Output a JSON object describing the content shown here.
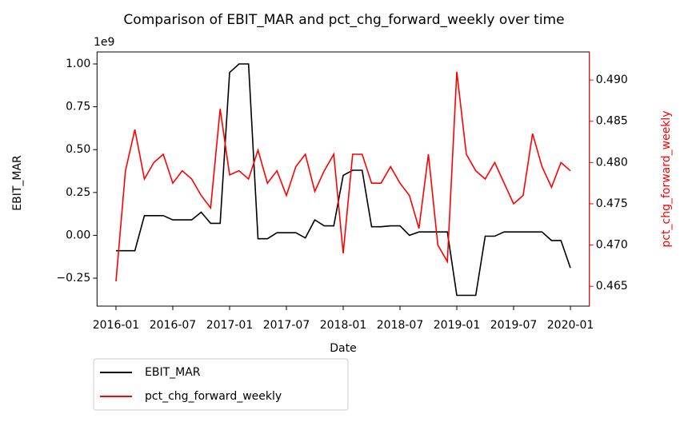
{
  "chart_data": {
    "type": "line",
    "title": "Comparison of EBIT_MAR and pct_chg_forward_weekly over time",
    "x_label": "Date",
    "y_label": "EBIT_MAR",
    "y2_label": "pct_chg_forward_weekly",
    "y_offset_label": "1e9",
    "x": [
      "2016-01",
      "2016-02",
      "2016-03",
      "2016-04",
      "2016-05",
      "2016-06",
      "2016-07",
      "2016-08",
      "2016-09",
      "2016-10",
      "2016-11",
      "2016-12",
      "2017-01",
      "2017-02",
      "2017-03",
      "2017-04",
      "2017-05",
      "2017-06",
      "2017-07",
      "2017-08",
      "2017-09",
      "2017-10",
      "2017-11",
      "2017-12",
      "2018-01",
      "2018-02",
      "2018-03",
      "2018-04",
      "2018-05",
      "2018-06",
      "2018-07",
      "2018-08",
      "2018-09",
      "2018-10",
      "2018-11",
      "2018-12",
      "2019-01",
      "2019-02",
      "2019-03",
      "2019-04",
      "2019-05",
      "2019-06",
      "2019-07",
      "2019-08",
      "2019-09",
      "2019-10",
      "2019-11",
      "2019-12",
      "2020-01"
    ],
    "series": [
      {
        "name": "EBIT_MAR",
        "color": "#000000",
        "axis": "y",
        "values": [
          -0.09,
          -0.09,
          -0.09,
          0.115,
          0.115,
          0.115,
          0.09,
          0.09,
          0.09,
          0.135,
          0.07,
          0.07,
          0.95,
          1.0,
          1.0,
          -0.02,
          -0.02,
          0.015,
          0.015,
          0.015,
          -0.015,
          0.09,
          0.055,
          0.055,
          0.35,
          0.38,
          0.38,
          0.05,
          0.05,
          0.055,
          0.055,
          0.0,
          0.02,
          0.02,
          0.02,
          0.02,
          -0.35,
          -0.35,
          -0.35,
          -0.005,
          -0.005,
          0.02,
          0.02,
          0.02,
          0.02,
          0.02,
          -0.03,
          -0.03,
          -0.19
        ]
      },
      {
        "name": "pct_chg_forward_weekly",
        "color": "#ff0000",
        "axis": "y2",
        "values": [
          0.4656,
          0.479,
          0.484,
          0.478,
          0.48,
          0.481,
          0.4775,
          0.479,
          0.478,
          0.476,
          0.4745,
          0.4865,
          0.4785,
          0.479,
          0.478,
          0.4815,
          0.4775,
          0.479,
          0.476,
          0.4795,
          0.481,
          0.4765,
          0.479,
          0.481,
          0.469,
          0.481,
          0.481,
          0.4775,
          0.4775,
          0.4795,
          0.4775,
          0.476,
          0.472,
          0.481,
          0.47,
          0.468,
          0.491,
          0.481,
          0.479,
          0.478,
          0.48,
          0.4775,
          0.475,
          0.476,
          0.4835,
          0.4795,
          0.477,
          0.48,
          0.479
        ]
      }
    ],
    "xlim": [
      "2015-11",
      "2020-03"
    ],
    "xticks": [
      "2016-01",
      "2016-07",
      "2017-01",
      "2017-07",
      "2018-01",
      "2018-07",
      "2019-01",
      "2019-07",
      "2020-01"
    ],
    "ylim": [
      -0.413,
      1.07
    ],
    "yticks": [
      {
        "value": -0.25,
        "label": "−0.25"
      },
      {
        "value": 0,
        "label": "0.00"
      },
      {
        "value": 0.25,
        "label": "0.25"
      },
      {
        "value": 0.5,
        "label": "0.50"
      },
      {
        "value": 0.75,
        "label": "0.75"
      },
      {
        "value": 1,
        "label": "1.00"
      }
    ],
    "y2lim": [
      0.4626,
      0.4934
    ],
    "y2ticks": [
      0.465,
      {
        "value": 0.47,
        "label": "0.470"
      },
      0.475,
      {
        "value": 0.48,
        "label": "0.480"
      },
      0.485,
      {
        "value": 0.49,
        "label": "0.490"
      }
    ],
    "legend": "below-left"
  }
}
